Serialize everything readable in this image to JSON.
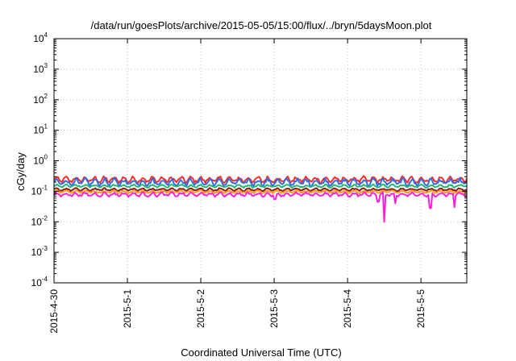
{
  "chart_data": {
    "type": "line",
    "title": "/data/run/goesPlots/archive/2015-05-05/15:00/flux/../bryn/5daysMoon.plot",
    "xlabel": "Coordinated Universal Time (UTC)",
    "ylabel": "cGy/day",
    "yscale": "log",
    "ylim": [
      0.0001,
      10000
    ],
    "yticks": [
      {
        "base": "10",
        "exp": "-4",
        "value": 0.0001
      },
      {
        "base": "10",
        "exp": "-3",
        "value": 0.001
      },
      {
        "base": "10",
        "exp": "-2",
        "value": 0.01
      },
      {
        "base": "10",
        "exp": "-1",
        "value": 0.1
      },
      {
        "base": "10",
        "exp": "0",
        "value": 1
      },
      {
        "base": "10",
        "exp": "1",
        "value": 10
      },
      {
        "base": "10",
        "exp": "2",
        "value": 100
      },
      {
        "base": "10",
        "exp": "3",
        "value": 1000
      },
      {
        "base": "10",
        "exp": "4",
        "value": 10000
      }
    ],
    "xlim": [
      "2015-04-30T00:00",
      "2015-05-05T15:00"
    ],
    "xticks": [
      "2015-4-30",
      "2015-5-1",
      "2015-5-2",
      "2015-5-3",
      "2015-5-4",
      "2015-5-5"
    ],
    "grid": true,
    "legend": "none",
    "series": [
      {
        "color": "#ff2a2a",
        "min": 0.18,
        "max": 0.32,
        "spikes": []
      },
      {
        "color": "#2f6de0",
        "min": 0.14,
        "max": 0.28,
        "spikes": []
      },
      {
        "color": "#22b573",
        "min": 0.13,
        "max": 0.17,
        "spikes": []
      },
      {
        "color": "#8b1a1a",
        "min": 0.1,
        "max": 0.13,
        "spikes": []
      },
      {
        "color": "#ff9d1a",
        "min": 0.085,
        "max": 0.11,
        "spikes": []
      },
      {
        "color": "#ff1fd6",
        "min": 0.065,
        "max": 0.095,
        "spikes": [
          {
            "time": "2015-05-03T00:10",
            "value": 0.055
          },
          {
            "time": "2015-05-04T10:00",
            "value": 0.045
          },
          {
            "time": "2015-05-04T12:00",
            "value": 0.01
          },
          {
            "time": "2015-05-04T15:30",
            "value": 0.04
          },
          {
            "time": "2015-05-05T03:00",
            "value": 0.028
          },
          {
            "time": "2015-05-05T11:00",
            "value": 0.03
          }
        ]
      }
    ]
  }
}
